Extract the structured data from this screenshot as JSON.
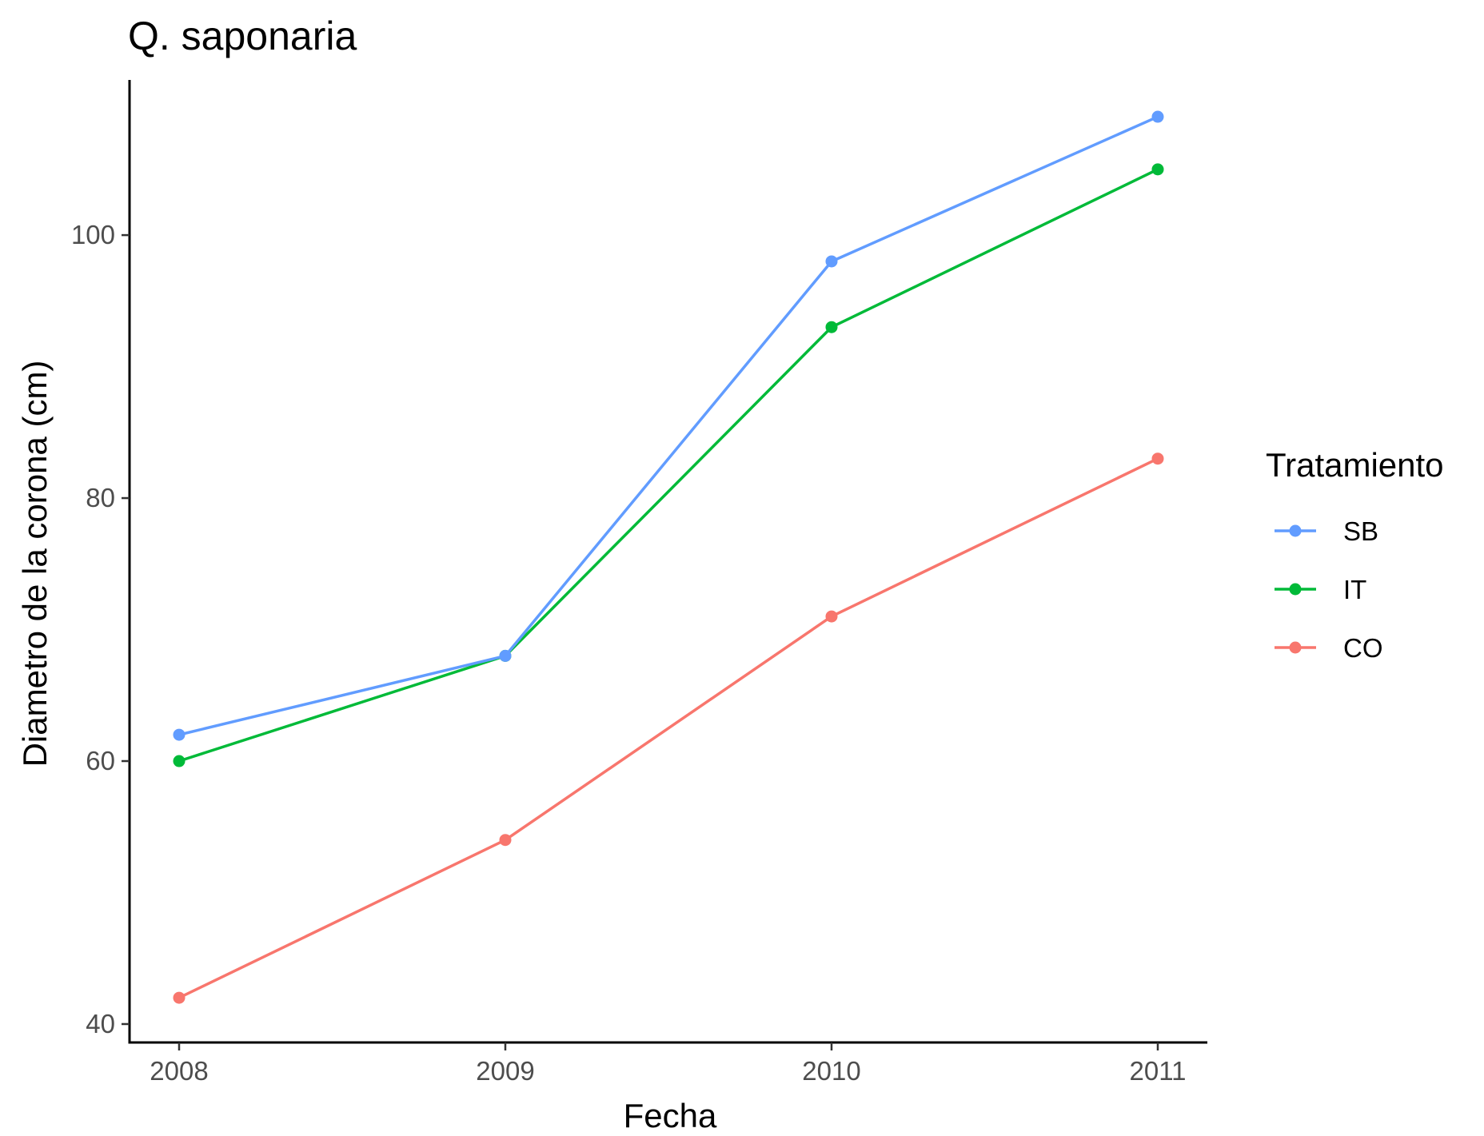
{
  "chart_data": {
    "type": "line",
    "title": "Q. saponaria",
    "xlabel": "Fecha",
    "ylabel": "Diametro de la corona (cm)",
    "x": [
      2008,
      2009,
      2010,
      2011
    ],
    "x_tick_labels": [
      "2008",
      "2009",
      "2010",
      "2011"
    ],
    "y_ticks": [
      40,
      60,
      80,
      100
    ],
    "y_tick_labels": [
      "40",
      "60",
      "80",
      "100"
    ],
    "ylim": [
      38.6,
      111.8
    ],
    "grid": false,
    "legend": {
      "title": "Tratamiento",
      "position": "right"
    },
    "series": [
      {
        "name": "SB",
        "color": "#619CFF",
        "values": [
          62,
          68,
          98,
          109
        ]
      },
      {
        "name": "IT",
        "color": "#00BA38",
        "values": [
          60,
          68,
          93,
          105
        ]
      },
      {
        "name": "CO",
        "color": "#F8766D",
        "values": [
          42,
          54,
          71,
          83
        ]
      }
    ]
  }
}
